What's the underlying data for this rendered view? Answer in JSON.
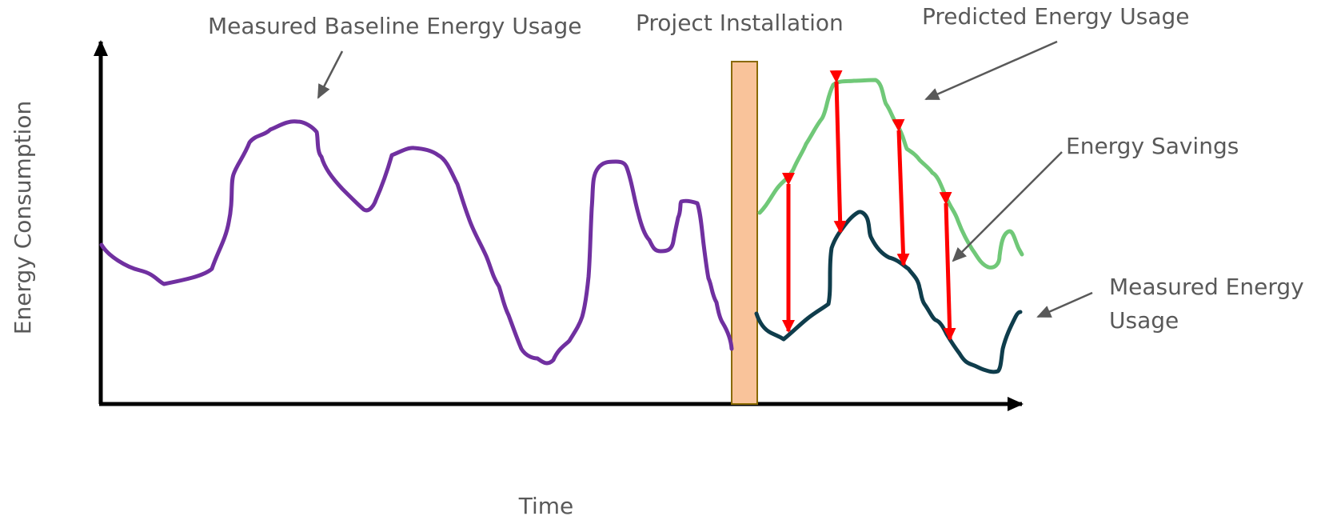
{
  "axes": {
    "y_label": "Energy Consumption",
    "x_label": "Time"
  },
  "annotations": {
    "baseline": "Measured Baseline Energy Usage",
    "installation": "Project Installation",
    "predicted": "Predicted Energy Usage",
    "savings": "Energy Savings",
    "measured_line1": "Measured Energy",
    "measured_line2": "Usage"
  },
  "colors": {
    "baseline": "#7030a0",
    "predicted": "#70c878",
    "measured": "#0f3d4c",
    "savings_arrow": "#ff0000",
    "installation_bar": "#f9c39a",
    "installation_border": "#8a6a00",
    "axis": "#000000",
    "pointer": "#595959"
  }
}
